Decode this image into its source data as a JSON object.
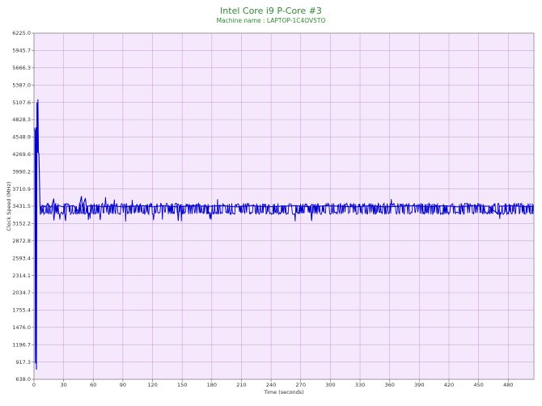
{
  "chart_data": {
    "type": "line",
    "title": "Intel Core i9 P-Core #3",
    "subtitle": "Machine name : LAPTOP-1C4OV5TO",
    "xlabel": "Time (seconds)",
    "ylabel": "Clock Speed (MHz)",
    "xlim": [
      0,
      506
    ],
    "ylim": [
      638.0,
      6225.0
    ],
    "x_ticks": [
      0,
      30,
      60,
      90,
      120,
      150,
      180,
      210,
      240,
      270,
      300,
      330,
      360,
      390,
      420,
      450,
      480
    ],
    "y_ticks": [
      "638.0",
      "917.3",
      "1196.7",
      "1476.0",
      "1755.4",
      "2034.7",
      "2314.1",
      "2593.4",
      "2872.8",
      "3152.2",
      "3431.5",
      "3710.9",
      "3990.2",
      "4269.6",
      "4548.9",
      "4828.3",
      "5107.6",
      "5387.0",
      "5666.3",
      "5945.7",
      "6225.0"
    ],
    "grid": true,
    "legend": "none",
    "colors": {
      "line": "#0000cc",
      "plot_bg": "#f6e8fc",
      "grid": "#c9a6d6",
      "title": "#2e8b2e"
    },
    "series": [
      {
        "name": "",
        "points": [
          [
            0,
            4700
          ],
          [
            1,
            4650
          ],
          [
            1.5,
            900
          ],
          [
            2,
            4700
          ],
          [
            2.5,
            800
          ],
          [
            3,
            5100
          ],
          [
            3.5,
            4300
          ],
          [
            4,
            5150
          ],
          [
            4.5,
            4300
          ],
          [
            5,
            4280
          ],
          [
            5.5,
            3900
          ],
          [
            6,
            3500
          ],
          [
            6.5,
            3300
          ],
          [
            7,
            3420
          ],
          [
            8,
            3430
          ],
          [
            9,
            3330
          ],
          [
            10,
            3440
          ],
          [
            12,
            3420
          ],
          [
            14,
            3480
          ],
          [
            16,
            3410
          ],
          [
            18,
            3430
          ],
          [
            20,
            3550
          ],
          [
            21,
            3300
          ],
          [
            22,
            3430
          ],
          [
            25,
            3440
          ],
          [
            30,
            3420
          ],
          [
            32,
            3200
          ],
          [
            33,
            3430
          ],
          [
            40,
            3440
          ],
          [
            45,
            3350
          ],
          [
            48,
            3590
          ],
          [
            49,
            3420
          ],
          [
            52,
            3560
          ],
          [
            53,
            3430
          ],
          [
            60,
            3440
          ],
          [
            70,
            3420
          ],
          [
            80,
            3440
          ],
          [
            90,
            3420
          ],
          [
            100,
            3430
          ],
          [
            110,
            3440
          ],
          [
            120,
            3420
          ],
          [
            130,
            3440
          ],
          [
            145,
            3420
          ],
          [
            146,
            3200
          ],
          [
            147,
            3420
          ],
          [
            160,
            3440
          ],
          [
            175,
            3430
          ],
          [
            176,
            3320
          ],
          [
            177,
            3430
          ],
          [
            190,
            3440
          ],
          [
            205,
            3420
          ],
          [
            220,
            3440
          ],
          [
            235,
            3420
          ],
          [
            250,
            3430
          ],
          [
            265,
            3440
          ],
          [
            280,
            3420
          ],
          [
            281,
            3200
          ],
          [
            282,
            3420
          ],
          [
            295,
            3440
          ],
          [
            310,
            3430
          ],
          [
            325,
            3420
          ],
          [
            340,
            3440
          ],
          [
            355,
            3420
          ],
          [
            370,
            3430
          ],
          [
            385,
            3440
          ],
          [
            400,
            3420
          ],
          [
            415,
            3440
          ],
          [
            430,
            3420
          ],
          [
            445,
            3440
          ],
          [
            460,
            3430
          ],
          [
            470,
            3300
          ],
          [
            471,
            3430
          ],
          [
            485,
            3440
          ],
          [
            500,
            3420
          ],
          [
            506,
            3430
          ]
        ]
      }
    ]
  }
}
